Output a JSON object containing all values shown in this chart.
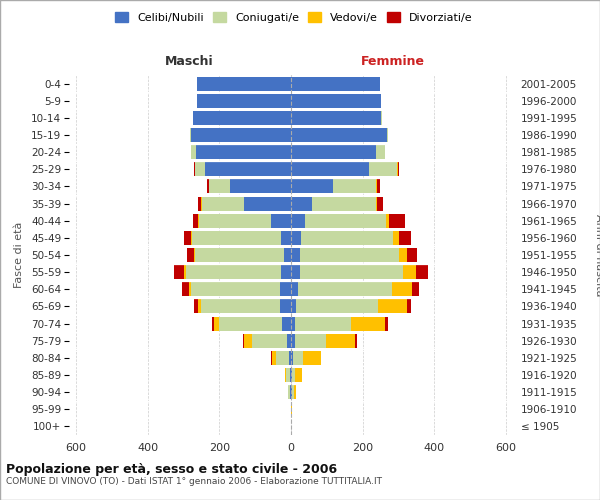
{
  "age_groups": [
    "100+",
    "95-99",
    "90-94",
    "85-89",
    "80-84",
    "75-79",
    "70-74",
    "65-69",
    "60-64",
    "55-59",
    "50-54",
    "45-49",
    "40-44",
    "35-39",
    "30-34",
    "25-29",
    "20-24",
    "15-19",
    "10-14",
    "5-9",
    "0-4"
  ],
  "birth_years": [
    "≤ 1905",
    "1906-1910",
    "1911-1915",
    "1916-1920",
    "1921-1925",
    "1926-1930",
    "1931-1935",
    "1936-1940",
    "1941-1945",
    "1946-1950",
    "1951-1955",
    "1956-1960",
    "1961-1965",
    "1966-1970",
    "1971-1975",
    "1976-1980",
    "1981-1985",
    "1986-1990",
    "1991-1995",
    "1996-2000",
    "2001-2005"
  ],
  "maschi": {
    "celibi": [
      0,
      0,
      2,
      3,
      5,
      10,
      25,
      30,
      30,
      28,
      20,
      28,
      55,
      130,
      170,
      240,
      265,
      278,
      273,
      263,
      262
    ],
    "coniugati": [
      0,
      1,
      5,
      10,
      38,
      100,
      175,
      220,
      250,
      265,
      248,
      248,
      202,
      118,
      58,
      28,
      14,
      4,
      2,
      0,
      0
    ],
    "vedovi": [
      0,
      0,
      2,
      5,
      10,
      20,
      15,
      10,
      5,
      5,
      4,
      4,
      2,
      2,
      2,
      0,
      0,
      0,
      0,
      0,
      0
    ],
    "divorziati": [
      0,
      0,
      0,
      0,
      2,
      5,
      5,
      10,
      20,
      30,
      18,
      18,
      14,
      10,
      5,
      2,
      0,
      0,
      0,
      0,
      0
    ]
  },
  "femmine": {
    "nubili": [
      0,
      0,
      2,
      2,
      5,
      10,
      10,
      15,
      20,
      25,
      25,
      28,
      38,
      58,
      118,
      218,
      238,
      268,
      252,
      252,
      248
    ],
    "coniugate": [
      0,
      1,
      5,
      10,
      28,
      88,
      158,
      228,
      262,
      288,
      278,
      258,
      228,
      178,
      118,
      78,
      24,
      4,
      2,
      0,
      0
    ],
    "vedove": [
      0,
      1,
      8,
      20,
      50,
      80,
      95,
      80,
      55,
      35,
      20,
      15,
      8,
      4,
      4,
      2,
      0,
      0,
      0,
      0,
      0
    ],
    "divorziate": [
      0,
      0,
      0,
      0,
      2,
      5,
      8,
      12,
      20,
      35,
      28,
      33,
      43,
      18,
      8,
      4,
      0,
      0,
      0,
      0,
      0
    ]
  },
  "color_celibi": "#4472c4",
  "color_coniugati": "#c5d9a0",
  "color_vedovi": "#ffc000",
  "color_divorziati": "#c00000",
  "xlim": 620,
  "title_main": "Popolazione per età, sesso e stato civile - 2006",
  "title_sub": "COMUNE DI VINOVO (TO) - Dati ISTAT 1° gennaio 2006 - Elaborazione TUTTITALIA.IT",
  "ylabel_left": "Fasce di età",
  "ylabel_right": "Anni di nascita",
  "xlabel_maschi": "Maschi",
  "xlabel_femmine": "Femmine"
}
